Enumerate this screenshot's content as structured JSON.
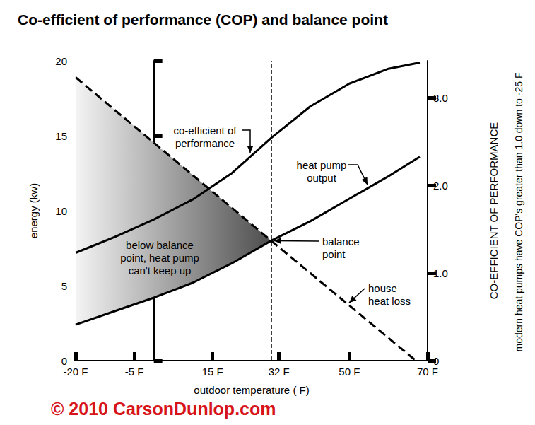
{
  "chart_data": {
    "type": "line",
    "title": "Co-efficient of performance (COP) and balance point",
    "x_label": "outdoor temperature ( F)",
    "y_label": "energy (kw)",
    "y2_label": "CO-EFFICIENT OF PERFORMANCE",
    "xlim": [
      -20,
      70
    ],
    "xticks": [
      {
        "value": -20,
        "label": "-20 F"
      },
      {
        "value": -5,
        "label": "-5 F"
      },
      {
        "value": 15,
        "label": "15 F"
      },
      {
        "value": 32,
        "label": "32 F"
      },
      {
        "value": 50,
        "label": "50 F"
      },
      {
        "value": 70,
        "label": "70 F"
      }
    ],
    "ylim": [
      0,
      20
    ],
    "yticks": [
      0,
      5,
      10,
      15,
      20
    ],
    "y2lim": [
      0,
      3.42
    ],
    "y2ticks": [
      0,
      {
        "value": 1,
        "label": "1.0"
      },
      {
        "value": 2,
        "label": "2.0"
      },
      {
        "value": 3,
        "label": "3.0"
      }
    ],
    "grid": false,
    "series": [
      {
        "name": "house heat loss",
        "color": "#000000",
        "line_style": "dashed",
        "x": [
          -20,
          30,
          67
        ],
        "values": [
          18.9,
          8.0,
          0
        ]
      },
      {
        "name": "heat pump output",
        "color": "#000000",
        "line_style": "solid",
        "x": [
          -20,
          -10,
          0,
          10,
          20,
          30,
          40,
          50,
          60,
          68
        ],
        "values": [
          2.4,
          3.3,
          4.2,
          5.2,
          6.5,
          8.0,
          9.3,
          10.8,
          12.3,
          13.6
        ]
      },
      {
        "name": "co-efficient of performance",
        "color": "#000000",
        "line_style": "solid",
        "axis": "y2",
        "x": [
          -20,
          -10,
          0,
          10,
          20,
          30,
          40,
          50,
          60,
          68
        ],
        "values": [
          1.23,
          1.41,
          1.61,
          1.84,
          2.14,
          2.54,
          2.9,
          3.16,
          3.33,
          3.4
        ]
      }
    ],
    "balance_point": {
      "label": "balance point",
      "x": 30,
      "y": 8.0
    },
    "shaded_region": {
      "text": "below balance point, heat pump can't keep up",
      "colors": [
        "#f4f4f4",
        "#4d4d4d"
      ]
    },
    "side_note": "modern heat pumps have COP's greater than 1.0 down to -25 F",
    "credit": {
      "text": "© 2010 CarsonDunlop.com",
      "color": "#d7141a"
    }
  }
}
